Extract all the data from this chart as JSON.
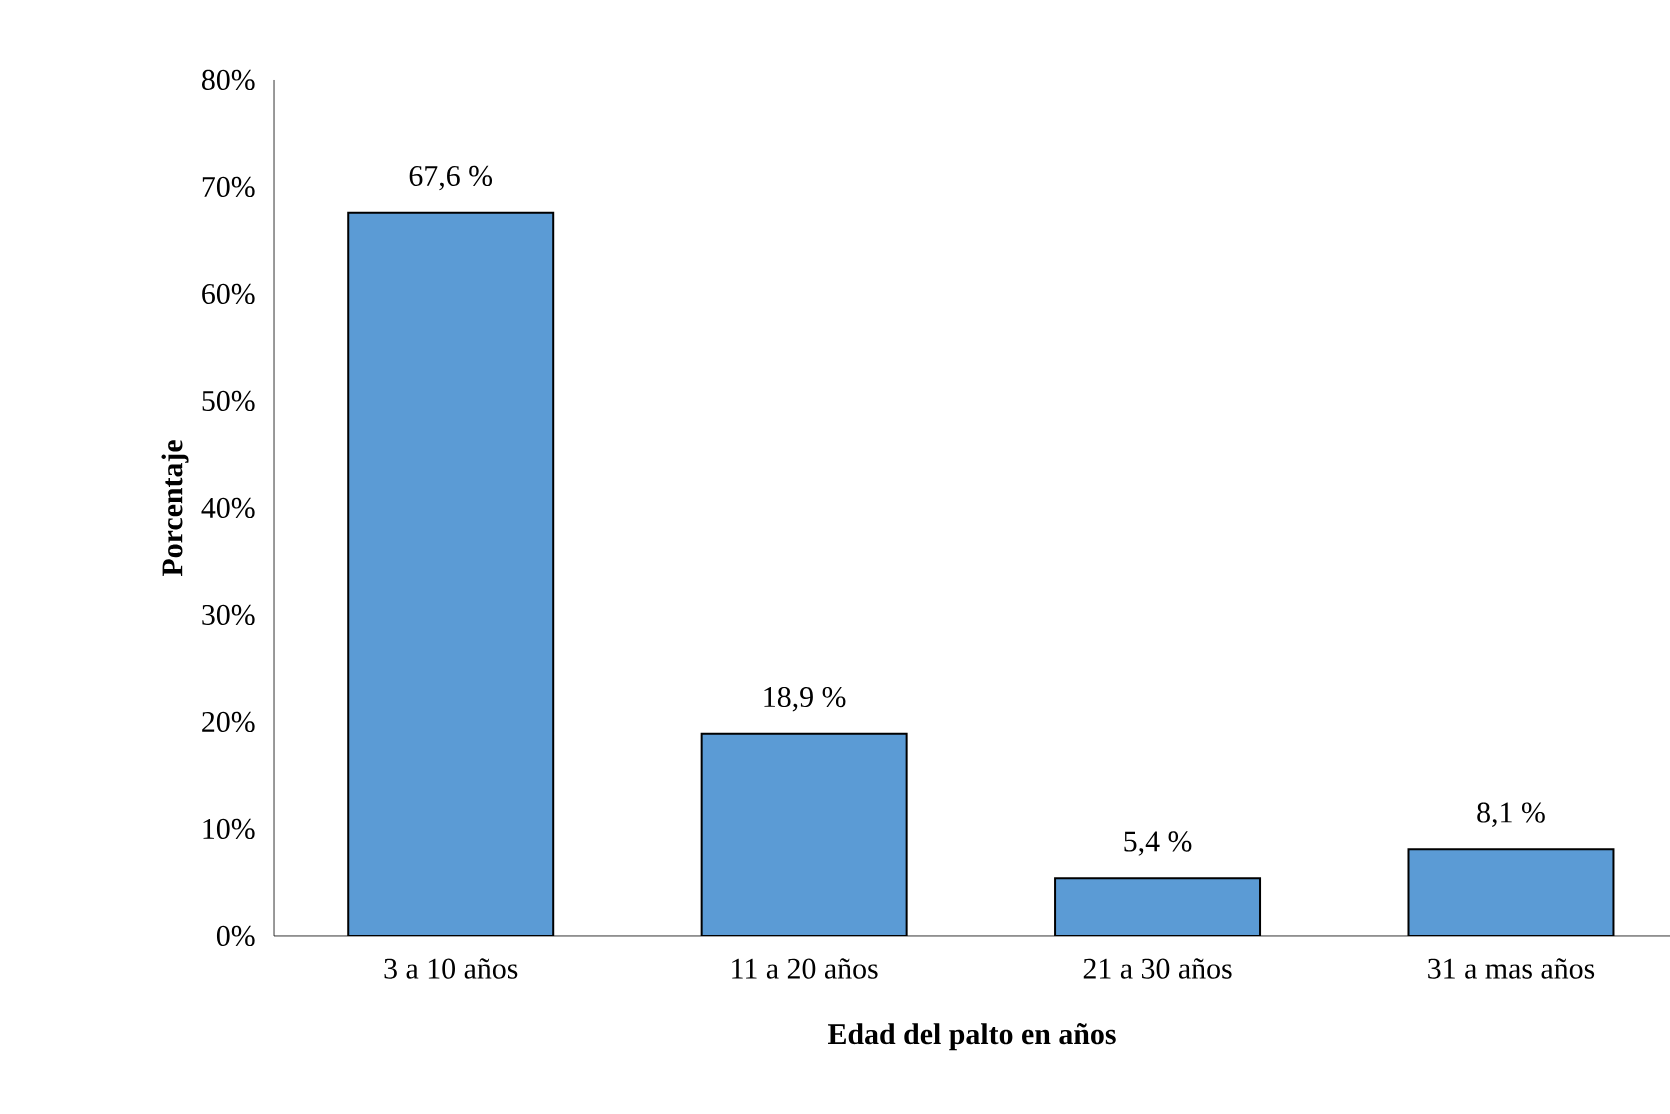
{
  "chart_data": {
    "type": "bar",
    "xlabel": "Edad del palto en años",
    "ylabel": "Porcentaje",
    "categories": [
      "3 a 10 años",
      "11 a 20 años",
      "21 a 30 años",
      "31 a mas años"
    ],
    "values": [
      67.6,
      18.9,
      5.4,
      8.1
    ],
    "value_labels": [
      "67,6 %",
      "18,9 %",
      "5,4 %",
      "8,1 %"
    ],
    "color": "#5b9bd5",
    "ylim": [
      0,
      80
    ],
    "yticks": [
      {
        "value": 0,
        "label": "0%"
      },
      {
        "value": 10,
        "label": "10%"
      },
      {
        "value": 20,
        "label": "20%"
      },
      {
        "value": 30,
        "label": "30%"
      },
      {
        "value": 40,
        "label": "40%"
      },
      {
        "value": 50,
        "label": "50%"
      },
      {
        "value": 60,
        "label": "60%"
      },
      {
        "value": 70,
        "label": "70%"
      },
      {
        "value": 80,
        "label": "80%"
      }
    ],
    "data_labels": false
  }
}
